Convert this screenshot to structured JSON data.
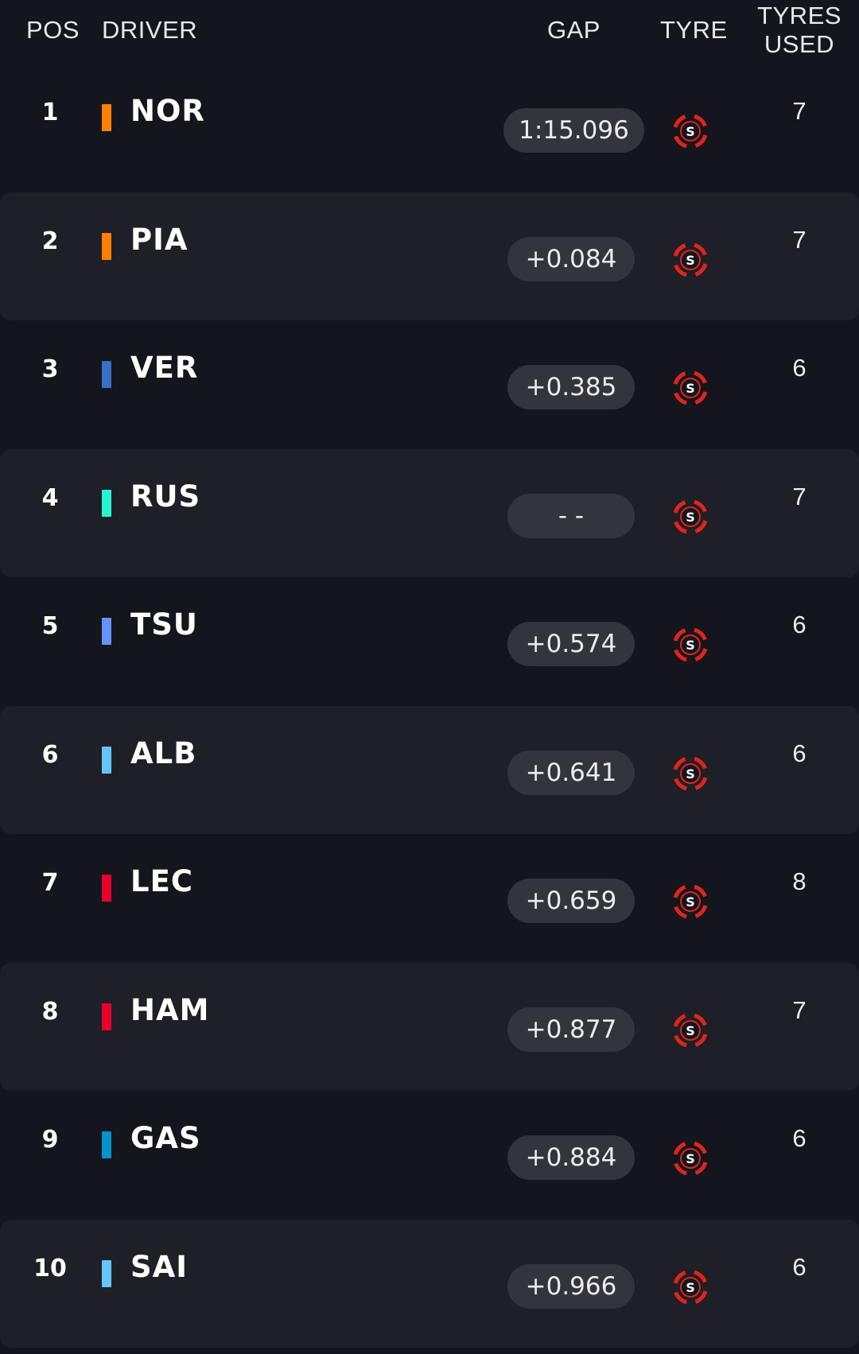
{
  "header": {
    "pos": "POS",
    "driver": "DRIVER",
    "gap": "GAP",
    "tyre": "TYRE",
    "tyres_used_line1": "TYRES",
    "tyres_used_line2": "USED"
  },
  "tyre_compound": "S",
  "colors": {
    "background": "#15151e",
    "alt_row": "#1f1f27",
    "gap_pill": "#34343c",
    "soft_tyre": "#e0241b"
  },
  "rows": [
    {
      "pos": "1",
      "code": "NOR",
      "team_color": "#ff8000",
      "gap": "1:15.096",
      "used": "7"
    },
    {
      "pos": "2",
      "code": "PIA",
      "team_color": "#ff8000",
      "gap": "+0.084",
      "used": "7"
    },
    {
      "pos": "3",
      "code": "VER",
      "team_color": "#3671c6",
      "gap": "+0.385",
      "used": "6"
    },
    {
      "pos": "4",
      "code": "RUS",
      "team_color": "#27f4d2",
      "gap": "- -",
      "used": "7"
    },
    {
      "pos": "5",
      "code": "TSU",
      "team_color": "#6692ff",
      "gap": "+0.574",
      "used": "6"
    },
    {
      "pos": "6",
      "code": "ALB",
      "team_color": "#64c4ff",
      "gap": "+0.641",
      "used": "6"
    },
    {
      "pos": "7",
      "code": "LEC",
      "team_color": "#e8002d",
      "gap": "+0.659",
      "used": "8"
    },
    {
      "pos": "8",
      "code": "HAM",
      "team_color": "#e8002d",
      "gap": "+0.877",
      "used": "7"
    },
    {
      "pos": "9",
      "code": "GAS",
      "team_color": "#0093cc",
      "gap": "+0.884",
      "used": "6"
    },
    {
      "pos": "10",
      "code": "SAI",
      "team_color": "#64c4ff",
      "gap": "+0.966",
      "used": "6"
    }
  ]
}
